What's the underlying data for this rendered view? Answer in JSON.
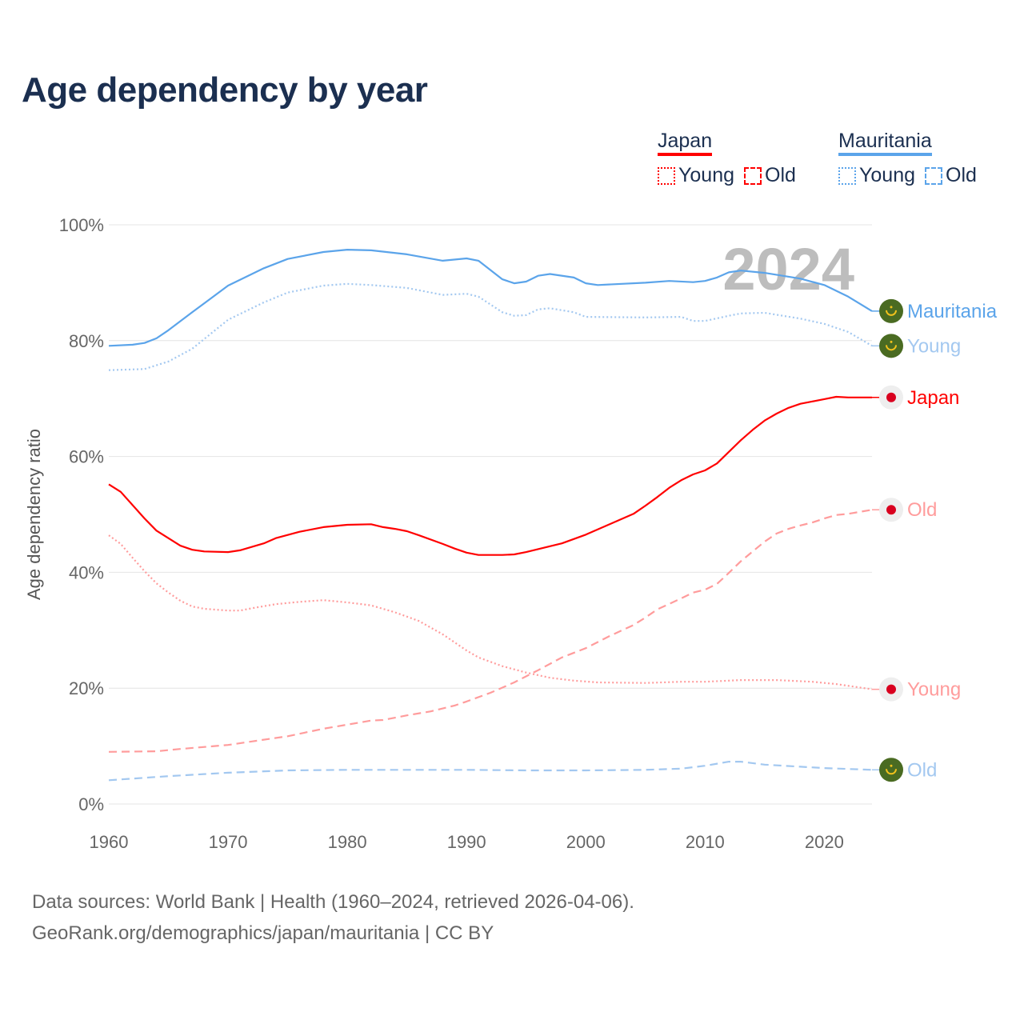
{
  "title": "Age dependency by year",
  "year_watermark": "2024",
  "legend": {
    "groups": [
      {
        "name": "Japan",
        "color": "#ff0000",
        "items": [
          "Young",
          "Old"
        ]
      },
      {
        "name": "Mauritania",
        "color": "#5ba4ea",
        "items": [
          "Young",
          "Old"
        ]
      }
    ]
  },
  "footer": {
    "line1": "Data sources: World Bank | Health (1960–2024, retrieved 2026-04-06).",
    "line2": "GeoRank.org/demographics/japan/mauritania | CC BY"
  },
  "chart_data": {
    "type": "line",
    "title": "Age dependency by year",
    "xlabel": "",
    "ylabel": "Age dependency ratio",
    "xlim": [
      1960,
      2024
    ],
    "ylim": [
      0,
      100
    ],
    "xticks": [
      1960,
      1970,
      1980,
      1990,
      2000,
      2010,
      2020
    ],
    "yticks": [
      0,
      20,
      40,
      60,
      80,
      100
    ],
    "ytick_labels": [
      "0%",
      "20%",
      "40%",
      "60%",
      "80%",
      "100%"
    ],
    "grid": true,
    "series": [
      {
        "name": "Mauritania",
        "end_label": "Mauritania",
        "country": "mauritania",
        "style": "solid",
        "color": "#5ba4ea",
        "labelColor": "#5ba4ea",
        "x": [
          1960,
          1962,
          1963,
          1964,
          1965,
          1967,
          1970,
          1973,
          1975,
          1978,
          1980,
          1982,
          1985,
          1988,
          1990,
          1991,
          1993,
          1994,
          1995,
          1996,
          1997,
          1999,
          2000,
          2001,
          2005,
          2007,
          2009,
          2010,
          2011,
          2012,
          2013,
          2015,
          2018,
          2020,
          2022,
          2024
        ],
        "y": [
          79.1,
          79.3,
          79.6,
          80.4,
          81.8,
          84.9,
          89.5,
          92.5,
          94.1,
          95.3,
          95.7,
          95.6,
          94.9,
          93.8,
          94.2,
          93.8,
          90.6,
          89.9,
          90.2,
          91.2,
          91.5,
          90.9,
          89.9,
          89.6,
          90.0,
          90.3,
          90.1,
          90.3,
          90.9,
          91.8,
          92.1,
          91.7,
          90.7,
          89.6,
          87.6,
          85.1
        ]
      },
      {
        "name": "Mauritania Young",
        "end_label": "Young",
        "country": "mauritania",
        "style": "dotted",
        "color": "#a3c8f0",
        "labelColor": "#a3c8f0",
        "x": [
          1960,
          1963,
          1965,
          1967,
          1970,
          1973,
          1975,
          1978,
          1980,
          1982,
          1985,
          1988,
          1990,
          1991,
          1993,
          1994,
          1995,
          1996,
          1997,
          1999,
          2000,
          2005,
          2008,
          2009,
          2010,
          2012,
          2013,
          2015,
          2018,
          2020,
          2022,
          2024
        ],
        "y": [
          74.9,
          75.1,
          76.4,
          78.6,
          83.6,
          86.6,
          88.3,
          89.5,
          89.8,
          89.6,
          89.1,
          87.9,
          88.1,
          87.6,
          84.9,
          84.3,
          84.4,
          85.4,
          85.6,
          84.9,
          84.1,
          84.0,
          84.1,
          83.4,
          83.4,
          84.3,
          84.7,
          84.8,
          83.8,
          82.9,
          81.5,
          79.1
        ]
      },
      {
        "name": "Japan",
        "end_label": "Japan",
        "country": "japan",
        "style": "solid",
        "color": "#ff0000",
        "labelColor": "#ff0000",
        "x": [
          1960,
          1961,
          1963,
          1964,
          1965,
          1966,
          1967,
          1968,
          1970,
          1971,
          1973,
          1974,
          1976,
          1978,
          1980,
          1982,
          1983,
          1984,
          1985,
          1986,
          1988,
          1989,
          1990,
          1991,
          1993,
          1994,
          1995,
          1997,
          1998,
          2000,
          2002,
          2003,
          2004,
          2005,
          2006,
          2007,
          2008,
          2009,
          2010,
          2011,
          2012,
          2013,
          2014,
          2015,
          2016,
          2017,
          2018,
          2019,
          2020,
          2021,
          2022,
          2024
        ],
        "y": [
          55.2,
          53.9,
          49.3,
          47.2,
          45.9,
          44.6,
          43.9,
          43.6,
          43.5,
          43.8,
          45.0,
          45.9,
          47.0,
          47.8,
          48.2,
          48.3,
          47.8,
          47.5,
          47.1,
          46.4,
          44.9,
          44.1,
          43.4,
          43.0,
          43.0,
          43.1,
          43.5,
          44.5,
          45.0,
          46.5,
          48.3,
          49.2,
          50.1,
          51.5,
          53.0,
          54.6,
          55.9,
          56.9,
          57.6,
          58.8,
          60.8,
          62.8,
          64.6,
          66.2,
          67.4,
          68.4,
          69.1,
          69.5,
          69.9,
          70.3,
          70.2,
          70.2
        ]
      },
      {
        "name": "Japan Old",
        "end_label": "Old",
        "country": "japan",
        "style": "dashed",
        "color": "#ff9c9c",
        "labelColor": "#ff9c9c",
        "x": [
          1960,
          1964,
          1966,
          1970,
          1972,
          1975,
          1978,
          1980,
          1982,
          1983,
          1985,
          1987,
          1989,
          1990,
          1992,
          1994,
          1996,
          1998,
          2000,
          2002,
          2004,
          2005,
          2006,
          2008,
          2009,
          2010,
          2011,
          2012,
          2013,
          2014,
          2015,
          2016,
          2017,
          2018,
          2019,
          2020,
          2021,
          2022,
          2024
        ],
        "y": [
          9.0,
          9.1,
          9.5,
          10.2,
          10.8,
          11.7,
          13.0,
          13.7,
          14.4,
          14.5,
          15.3,
          16.0,
          17.0,
          17.7,
          19.2,
          21.0,
          23.1,
          25.3,
          26.9,
          29.0,
          30.9,
          32.2,
          33.6,
          35.5,
          36.5,
          37.0,
          38.0,
          39.9,
          41.9,
          43.6,
          45.3,
          46.7,
          47.5,
          48.1,
          48.6,
          49.3,
          49.9,
          50.1,
          50.8
        ]
      },
      {
        "name": "Japan Young",
        "end_label": "Young",
        "country": "japan",
        "style": "dotted",
        "color": "#ff9c9c",
        "labelColor": "#ff9c9c",
        "x": [
          1960,
          1961,
          1962,
          1963,
          1964,
          1965,
          1966,
          1967,
          1968,
          1970,
          1971,
          1972,
          1974,
          1976,
          1978,
          1980,
          1982,
          1984,
          1986,
          1988,
          1990,
          1991,
          1993,
          1995,
          1997,
          1999,
          2001,
          2005,
          2008,
          2010,
          2013,
          2016,
          2019,
          2021,
          2024
        ],
        "y": [
          46.4,
          44.9,
          42.5,
          40.2,
          38.1,
          36.5,
          35.1,
          34.1,
          33.7,
          33.4,
          33.4,
          33.8,
          34.5,
          34.9,
          35.2,
          34.8,
          34.3,
          33.1,
          31.6,
          29.3,
          26.5,
          25.3,
          23.8,
          22.7,
          21.8,
          21.3,
          21.0,
          20.9,
          21.1,
          21.1,
          21.4,
          21.4,
          21.1,
          20.7,
          19.8
        ]
      },
      {
        "name": "Mauritania Old",
        "end_label": "Old",
        "country": "mauritania",
        "style": "dashed",
        "color": "#a3c8f0",
        "labelColor": "#a3c8f0",
        "x": [
          1960,
          1965,
          1970,
          1975,
          1980,
          1990,
          1995,
          2000,
          2005,
          2008,
          2010,
          2012,
          2013,
          2015,
          2020,
          2024
        ],
        "y": [
          4.1,
          4.8,
          5.4,
          5.8,
          5.9,
          5.9,
          5.8,
          5.8,
          5.9,
          6.1,
          6.6,
          7.3,
          7.3,
          6.8,
          6.2,
          5.9
        ]
      }
    ]
  }
}
